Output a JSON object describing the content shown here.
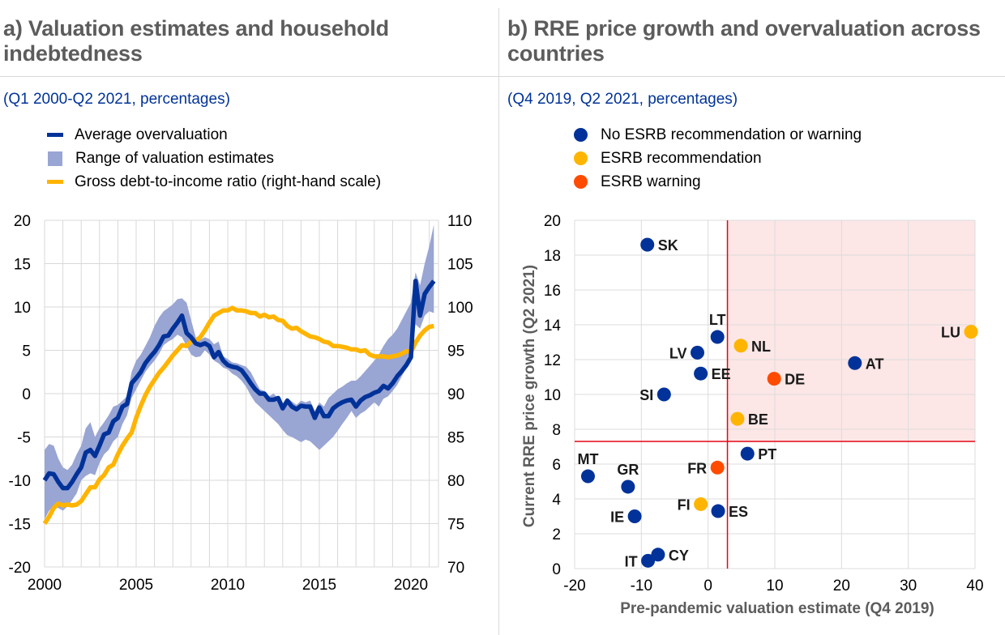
{
  "panel_a": {
    "title_line1": "a) Valuation estimates and household",
    "title_line2": "indebtedness",
    "subtitle": "(Q1 2000-Q2 2021, percentages)",
    "legend": [
      {
        "label": "Average overvaluation",
        "color": "#003299",
        "kind": "line"
      },
      {
        "label": "Range of valuation estimates",
        "color": "#99a5d3",
        "kind": "box"
      },
      {
        "label": "Gross debt-to-income ratio (right-hand scale)",
        "color": "#ffb400",
        "kind": "line"
      }
    ]
  },
  "panel_b": {
    "title_line1": "b) RRE price growth and overvaluation across",
    "title_line2": "countries",
    "subtitle": "(Q4 2019, Q2 2021, percentages)",
    "legend": [
      {
        "label": "No ESRB recommendation or warning",
        "color": "#003299"
      },
      {
        "label": "ESRB recommendation",
        "color": "#ffb400"
      },
      {
        "label": "ESRB warning",
        "color": "#ff4b00"
      }
    ]
  },
  "chart_data": [
    {
      "type": "line",
      "title": "a) Valuation estimates and household indebtedness",
      "subtitle": "(Q1 2000-Q2 2021, percentages)",
      "xlabel": "",
      "ylabel": "",
      "xlim": [
        2000,
        2021.5
      ],
      "xticks": [
        2000,
        2005,
        2010,
        2015,
        2020
      ],
      "ylim": [
        -20,
        20
      ],
      "yticks": [
        -20,
        -15,
        -10,
        -5,
        0,
        5,
        10,
        15,
        20
      ],
      "y2lim": [
        70,
        110
      ],
      "y2ticks": [
        70,
        75,
        80,
        85,
        90,
        95,
        100,
        105,
        110
      ],
      "grid": true,
      "legend_position": "top",
      "series": [
        {
          "name": "Average overvaluation",
          "axis": "left",
          "color": "#003299",
          "x": [
            2000.0,
            2000.25,
            2000.5,
            2000.75,
            2001.0,
            2001.25,
            2001.5,
            2001.75,
            2002.0,
            2002.25,
            2002.5,
            2002.75,
            2003.0,
            2003.25,
            2003.5,
            2003.75,
            2004.0,
            2004.25,
            2004.5,
            2004.75,
            2005.0,
            2005.25,
            2005.5,
            2005.75,
            2006.0,
            2006.25,
            2006.5,
            2006.75,
            2007.0,
            2007.25,
            2007.5,
            2007.75,
            2008.0,
            2008.25,
            2008.5,
            2008.75,
            2009.0,
            2009.25,
            2009.5,
            2009.75,
            2010.0,
            2010.25,
            2010.5,
            2010.75,
            2011.0,
            2011.25,
            2011.5,
            2011.75,
            2012.0,
            2012.25,
            2012.5,
            2012.75,
            2013.0,
            2013.25,
            2013.5,
            2013.75,
            2014.0,
            2014.25,
            2014.5,
            2014.75,
            2015.0,
            2015.25,
            2015.5,
            2015.75,
            2016.0,
            2016.25,
            2016.5,
            2016.75,
            2017.0,
            2017.25,
            2017.5,
            2017.75,
            2018.0,
            2018.25,
            2018.5,
            2018.75,
            2019.0,
            2019.25,
            2019.5,
            2019.75,
            2020.0,
            2020.25,
            2020.5,
            2020.75,
            2021.0,
            2021.25
          ],
          "y": [
            -10.0,
            -9.2,
            -9.3,
            -10.2,
            -10.9,
            -10.9,
            -10.2,
            -9.3,
            -8.5,
            -6.8,
            -6.5,
            -7.2,
            -6.0,
            -4.7,
            -4.5,
            -3.2,
            -2.8,
            -1.5,
            -1.2,
            1.2,
            1.8,
            2.5,
            3.5,
            4.2,
            4.8,
            5.6,
            6.6,
            6.7,
            7.5,
            8.2,
            9.0,
            7.0,
            6.5,
            5.8,
            5.6,
            5.8,
            5.5,
            4.2,
            4.8,
            3.8,
            3.3,
            3.1,
            3.0,
            2.7,
            2.0,
            1.2,
            0.5,
            0.0,
            0.0,
            -0.7,
            -0.7,
            -0.5,
            -1.7,
            -0.8,
            -1.5,
            -1.8,
            -1.4,
            -1.5,
            -1.5,
            -2.8,
            -1.6,
            -2.6,
            -2.6,
            -1.7,
            -1.3,
            -1.0,
            -0.8,
            -0.7,
            -1.5,
            -0.8,
            -0.4,
            -0.2,
            0.1,
            0.3,
            0.9,
            0.6,
            1.2,
            2.0,
            2.6,
            3.3,
            4.2,
            13.0,
            9.0,
            11.5,
            12.3,
            13.0
          ]
        },
        {
          "name": "Range of valuation estimates",
          "axis": "left",
          "color": "#99a5d3",
          "x": [
            2000.0,
            2000.25,
            2000.5,
            2000.75,
            2001.0,
            2001.25,
            2001.5,
            2001.75,
            2002.0,
            2002.25,
            2002.5,
            2002.75,
            2003.0,
            2003.25,
            2003.5,
            2003.75,
            2004.0,
            2004.25,
            2004.5,
            2004.75,
            2005.0,
            2005.25,
            2005.5,
            2005.75,
            2006.0,
            2006.25,
            2006.5,
            2006.75,
            2007.0,
            2007.25,
            2007.5,
            2007.75,
            2008.0,
            2008.25,
            2008.5,
            2008.75,
            2009.0,
            2009.25,
            2009.5,
            2009.75,
            2010.0,
            2010.25,
            2010.5,
            2010.75,
            2011.0,
            2011.25,
            2011.5,
            2011.75,
            2012.0,
            2012.25,
            2012.5,
            2012.75,
            2013.0,
            2013.25,
            2013.5,
            2013.75,
            2014.0,
            2014.25,
            2014.5,
            2014.75,
            2015.0,
            2015.25,
            2015.5,
            2015.75,
            2016.0,
            2016.25,
            2016.5,
            2016.75,
            2017.0,
            2017.25,
            2017.5,
            2017.75,
            2018.0,
            2018.25,
            2018.5,
            2018.75,
            2019.0,
            2019.25,
            2019.5,
            2019.75,
            2020.0,
            2020.25,
            2020.5,
            2020.75,
            2021.0,
            2021.25
          ],
          "lower": [
            -14.5,
            -13.5,
            -13.0,
            -13.2,
            -13.5,
            -13.0,
            -12.3,
            -11.5,
            -10.0,
            -9.5,
            -9.2,
            -9.4,
            -8.0,
            -7.0,
            -6.5,
            -5.5,
            -5.0,
            -3.5,
            -2.5,
            -0.5,
            0.5,
            1.5,
            2.5,
            3.2,
            3.8,
            4.6,
            5.6,
            6.0,
            6.3,
            6.8,
            6.5,
            5.5,
            4.5,
            4.2,
            4.3,
            5.0,
            4.5,
            3.8,
            3.5,
            3.0,
            2.8,
            2.3,
            2.0,
            1.5,
            0.8,
            -0.2,
            -1.0,
            -1.5,
            -2.0,
            -2.5,
            -3.0,
            -3.5,
            -4.2,
            -4.8,
            -5.0,
            -5.3,
            -5.6,
            -5.3,
            -5.5,
            -6.0,
            -6.5,
            -6.0,
            -5.5,
            -5.0,
            -4.3,
            -3.5,
            -2.8,
            -2.0,
            -2.8,
            -2.3,
            -2.0,
            -1.5,
            -1.0,
            -1.5,
            -0.6,
            -0.3,
            0.3,
            1.0,
            2.0,
            3.0,
            4.0,
            8.0,
            7.5,
            9.0,
            9.5,
            9.3
          ],
          "upper": [
            -6.5,
            -5.8,
            -6.0,
            -7.5,
            -8.5,
            -8.8,
            -8.2,
            -7.0,
            -6.0,
            -4.0,
            -3.3,
            -5.0,
            -4.0,
            -3.3,
            -2.5,
            -1.5,
            -1.3,
            -0.8,
            -0.3,
            2.5,
            3.8,
            4.5,
            5.5,
            6.5,
            7.8,
            8.8,
            9.5,
            9.9,
            10.3,
            10.9,
            11.0,
            10.5,
            8.5,
            6.5,
            6.2,
            6.5,
            6.3,
            5.7,
            6.0,
            4.3,
            4.0,
            3.6,
            3.5,
            3.3,
            3.1,
            2.5,
            1.5,
            0.5,
            0.3,
            -0.3,
            0.0,
            -0.5,
            -1.2,
            -0.5,
            -0.9,
            -1.3,
            -0.8,
            -1.0,
            -0.8,
            -2.0,
            -1.0,
            -1.5,
            -0.5,
            0.0,
            0.5,
            0.8,
            1.2,
            1.5,
            1.5,
            2.0,
            2.6,
            3.2,
            3.8,
            4.5,
            5.5,
            6.3,
            6.8,
            7.5,
            8.5,
            9.5,
            10.5,
            14.0,
            12.5,
            15.0,
            17.0,
            19.5
          ]
        },
        {
          "name": "Gross debt-to-income ratio (right-hand scale)",
          "axis": "right",
          "color": "#ffb400",
          "x": [
            2000.0,
            2000.25,
            2000.5,
            2000.75,
            2001.0,
            2001.25,
            2001.5,
            2001.75,
            2002.0,
            2002.25,
            2002.5,
            2002.75,
            2003.0,
            2003.25,
            2003.5,
            2003.75,
            2004.0,
            2004.25,
            2004.5,
            2004.75,
            2005.0,
            2005.25,
            2005.5,
            2005.75,
            2006.0,
            2006.25,
            2006.5,
            2006.75,
            2007.0,
            2007.25,
            2007.5,
            2007.75,
            2008.0,
            2008.25,
            2008.5,
            2008.75,
            2009.0,
            2009.25,
            2009.5,
            2009.75,
            2010.0,
            2010.25,
            2010.5,
            2010.75,
            2011.0,
            2011.25,
            2011.5,
            2011.75,
            2012.0,
            2012.25,
            2012.5,
            2012.75,
            2013.0,
            2013.25,
            2013.5,
            2013.75,
            2014.0,
            2014.25,
            2014.5,
            2014.75,
            2015.0,
            2015.25,
            2015.5,
            2015.75,
            2016.0,
            2016.25,
            2016.5,
            2016.75,
            2017.0,
            2017.25,
            2017.5,
            2017.75,
            2018.0,
            2018.25,
            2018.5,
            2018.75,
            2019.0,
            2019.25,
            2019.5,
            2019.75,
            2020.0,
            2020.25,
            2020.5,
            2020.75,
            2021.0,
            2021.25
          ],
          "y": [
            75.0,
            75.8,
            76.8,
            77.3,
            77.1,
            77.2,
            77.1,
            77.2,
            77.6,
            78.4,
            79.2,
            79.2,
            80.1,
            80.6,
            81.5,
            81.8,
            83.0,
            84.0,
            84.8,
            85.5,
            87.2,
            88.6,
            89.8,
            90.8,
            91.6,
            92.4,
            93.0,
            93.7,
            94.4,
            95.0,
            95.6,
            95.5,
            96.0,
            96.1,
            96.5,
            97.3,
            98.2,
            99.0,
            99.3,
            99.6,
            99.6,
            99.9,
            99.6,
            99.6,
            99.5,
            99.3,
            99.3,
            98.9,
            99.1,
            98.8,
            98.9,
            98.5,
            98.4,
            97.8,
            97.5,
            97.6,
            97.2,
            96.9,
            96.6,
            96.5,
            96.3,
            96.0,
            95.9,
            95.5,
            95.5,
            95.4,
            95.3,
            95.1,
            95.1,
            94.9,
            95.0,
            94.5,
            94.3,
            94.3,
            94.3,
            94.2,
            94.3,
            94.4,
            94.6,
            94.9,
            94.8,
            95.9,
            96.7,
            97.3,
            97.7,
            97.8
          ]
        }
      ]
    },
    {
      "type": "scatter",
      "title": "b) RRE price growth and overvaluation across countries",
      "subtitle": "(Q4 2019, Q2 2021, percentages)",
      "xlabel": "Pre-pandemic valuation estimate (Q4 2019)",
      "ylabel": "Current RRE price growth (Q2 2021)",
      "xlim": [
        -20,
        40
      ],
      "xticks": [
        -20,
        -10,
        0,
        10,
        20,
        30,
        40
      ],
      "ylim": [
        0,
        20
      ],
      "yticks": [
        0,
        2,
        4,
        6,
        8,
        10,
        12,
        14,
        16,
        18,
        20
      ],
      "grid": true,
      "legend_position": "top",
      "threshold_lines": {
        "x": 2.9,
        "y": 7.3,
        "color": "#e30613"
      },
      "shaded_region": {
        "x_from": 2.9,
        "y_from": 7.3,
        "color": "#fde6e6"
      },
      "categories": [
        {
          "name": "No ESRB recommendation or warning",
          "color": "#003299"
        },
        {
          "name": "ESRB recommendation",
          "color": "#ffb400"
        },
        {
          "name": "ESRB warning",
          "color": "#ff4b00"
        }
      ],
      "points": [
        {
          "label": "SK",
          "x": -9.1,
          "y": 18.6,
          "category": 0,
          "label_side": "right"
        },
        {
          "label": "LT",
          "x": 1.4,
          "y": 13.3,
          "category": 0,
          "label_side": "top"
        },
        {
          "label": "NL",
          "x": 4.9,
          "y": 12.8,
          "category": 1,
          "label_side": "right"
        },
        {
          "label": "LV",
          "x": -1.6,
          "y": 12.4,
          "category": 0,
          "label_side": "left"
        },
        {
          "label": "EE",
          "x": -1.1,
          "y": 11.2,
          "category": 0,
          "label_side": "right"
        },
        {
          "label": "SI",
          "x": -6.6,
          "y": 10.0,
          "category": 0,
          "label_side": "left"
        },
        {
          "label": "DE",
          "x": 9.9,
          "y": 10.9,
          "category": 2,
          "label_side": "right"
        },
        {
          "label": "AT",
          "x": 22.0,
          "y": 11.8,
          "category": 0,
          "label_side": "right"
        },
        {
          "label": "LU",
          "x": 39.4,
          "y": 13.6,
          "category": 1,
          "label_side": "left"
        },
        {
          "label": "BE",
          "x": 4.4,
          "y": 8.6,
          "category": 1,
          "label_side": "right"
        },
        {
          "label": "PT",
          "x": 5.9,
          "y": 6.6,
          "category": 0,
          "label_side": "right"
        },
        {
          "label": "FR",
          "x": 1.4,
          "y": 5.8,
          "category": 2,
          "label_side": "left"
        },
        {
          "label": "MT",
          "x": -18.0,
          "y": 5.3,
          "category": 0,
          "label_side": "top"
        },
        {
          "label": "GR",
          "x": -12.0,
          "y": 4.7,
          "category": 0,
          "label_side": "top"
        },
        {
          "label": "FI",
          "x": -1.1,
          "y": 3.7,
          "category": 1,
          "label_side": "left"
        },
        {
          "label": "ES",
          "x": 1.5,
          "y": 3.3,
          "category": 0,
          "label_side": "right"
        },
        {
          "label": "IE",
          "x": -11.0,
          "y": 3.0,
          "category": 0,
          "label_side": "left"
        },
        {
          "label": "CY",
          "x": -7.5,
          "y": 0.8,
          "category": 0,
          "label_side": "right"
        },
        {
          "label": "IT",
          "x": -9.0,
          "y": 0.45,
          "category": 0,
          "label_side": "left"
        }
      ]
    }
  ]
}
